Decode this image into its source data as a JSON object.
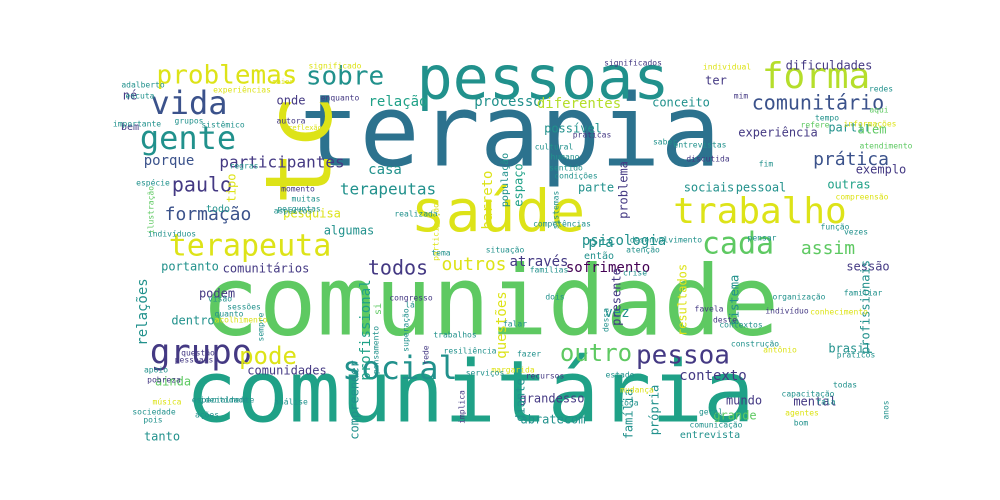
{
  "palette": {
    "yellow": "#dde318",
    "lime": "#b5de2b",
    "green": "#5ec962",
    "teal": "#21918c",
    "cyan": "#1fa187",
    "blue": "#3b528b",
    "slate": "#2c728e",
    "indigo": "#443983",
    "purple": "#440154",
    "lightgreen": "#8fd744"
  },
  "words": [
    {
      "t": "terapia",
      "c": "slate"
    },
    {
      "t": "comunidade",
      "c": "green"
    },
    {
      "t": "comunitária",
      "c": "cyan"
    },
    {
      "t": "pessoas",
      "c": "teal"
    },
    {
      "t": "saúde",
      "c": "yellow"
    },
    {
      "t": "tc",
      "c": "yellow"
    },
    {
      "t": "terapeuta",
      "c": "yellow"
    },
    {
      "t": "trabalho",
      "c": "yellow"
    },
    {
      "t": "grupo",
      "c": "indigo"
    },
    {
      "t": "forma",
      "c": "lime"
    },
    {
      "t": "gente",
      "c": "teal"
    },
    {
      "t": "vida",
      "c": "blue"
    },
    {
      "t": "sobre",
      "c": "teal"
    },
    {
      "t": "problemas",
      "c": "yellow"
    },
    {
      "t": "social",
      "c": "teal"
    },
    {
      "t": "cada",
      "c": "green"
    },
    {
      "t": "pessoa",
      "c": "indigo"
    },
    {
      "t": "comunitário",
      "c": "blue"
    },
    {
      "t": "prática",
      "c": "blue"
    },
    {
      "t": "outro",
      "c": "green"
    },
    {
      "t": "todos",
      "c": "indigo"
    },
    {
      "t": "pode",
      "c": "yellow"
    },
    {
      "t": "paulo",
      "c": "indigo"
    },
    {
      "t": "formação",
      "c": "blue"
    },
    {
      "t": "participantes",
      "c": "indigo"
    },
    {
      "t": "terapeutas",
      "c": "teal"
    },
    {
      "t": "assim",
      "c": "green"
    },
    {
      "t": "outros",
      "c": "yellow"
    },
    {
      "t": "através",
      "c": "indigo"
    },
    {
      "t": "sofrimento",
      "c": "purple"
    },
    {
      "t": "porque",
      "c": "blue"
    },
    {
      "t": "psicologia",
      "c": "teal"
    },
    {
      "t": "contexto",
      "c": "indigo"
    },
    {
      "t": "sociais",
      "c": "teal"
    },
    {
      "t": "pessoal",
      "c": "teal"
    },
    {
      "t": "relação",
      "c": "cyan"
    },
    {
      "t": "processo",
      "c": "teal"
    },
    {
      "t": "diferentes",
      "c": "lime"
    },
    {
      "t": "conceito",
      "c": "teal"
    },
    {
      "t": "onde",
      "c": "indigo"
    },
    {
      "t": "casa",
      "c": "teal"
    },
    {
      "t": "barreto",
      "c": "yellow"
    },
    {
      "t": "espaço",
      "c": "cyan"
    },
    {
      "t": "população",
      "c": "teal"
    },
    {
      "t": "possível",
      "c": "teal"
    },
    {
      "t": "experiência",
      "c": "indigo"
    },
    {
      "t": "partir",
      "c": "teal"
    },
    {
      "t": "outras",
      "c": "cyan"
    },
    {
      "t": "exemplo",
      "c": "indigo"
    },
    {
      "t": "além",
      "c": "green"
    },
    {
      "t": "ter",
      "c": "indigo"
    },
    {
      "t": "dificuldades",
      "c": "indigo"
    },
    {
      "t": "parte",
      "c": "teal"
    },
    {
      "t": "problema",
      "c": "indigo"
    },
    {
      "t": "pra",
      "c": "teal"
    },
    {
      "t": "então",
      "c": "teal"
    },
    {
      "t": "pesquisa",
      "c": "yellow"
    },
    {
      "t": "algumas",
      "c": "teal"
    },
    {
      "t": "todo",
      "c": "teal"
    },
    {
      "t": "tipo",
      "c": "yellow"
    },
    {
      "t": "portanto",
      "c": "teal"
    },
    {
      "t": "comunitários",
      "c": "indigo"
    },
    {
      "t": "sessão",
      "c": "indigo"
    },
    {
      "t": "podem",
      "c": "indigo"
    },
    {
      "t": "dentro",
      "c": "teal"
    },
    {
      "t": "relações",
      "c": "teal"
    },
    {
      "t": "profissional",
      "c": "cyan"
    },
    {
      "t": "comunidades",
      "c": "indigo"
    },
    {
      "t": "ainda",
      "c": "green"
    },
    {
      "t": "tanto",
      "c": "teal"
    },
    {
      "t": "compreender",
      "c": "teal"
    },
    {
      "t": "grandesso",
      "c": "indigo"
    },
    {
      "t": "diante",
      "c": "teal"
    },
    {
      "t": "abratecom",
      "c": "teal"
    },
    {
      "t": "família",
      "c": "teal"
    },
    {
      "t": "própria",
      "c": "teal"
    },
    {
      "t": "mundo",
      "c": "indigo"
    },
    {
      "t": "grande",
      "c": "green"
    },
    {
      "t": "entrevista",
      "c": "teal"
    },
    {
      "t": "mental",
      "c": "indigo"
    },
    {
      "t": "vez",
      "c": "teal"
    },
    {
      "t": "sistema",
      "c": "teal"
    },
    {
      "t": "presente",
      "c": "indigo"
    },
    {
      "t": "resultados",
      "c": "yellow"
    },
    {
      "t": "profissionais",
      "c": "teal"
    },
    {
      "t": "brasil",
      "c": "teal"
    },
    {
      "t": "questões",
      "c": "yellow"
    },
    {
      "t": "né",
      "c": "indigo"
    },
    {
      "t": "bem",
      "c": "indigo"
    },
    {
      "t": "si",
      "c": "green"
    },
    {
      "t": "significado",
      "c": "yellow"
    },
    {
      "t": "significados",
      "c": "indigo"
    },
    {
      "t": "adalberto",
      "c": "teal"
    },
    {
      "t": "experiências",
      "c": "yellow"
    },
    {
      "t": "escuta",
      "c": "teal"
    },
    {
      "t": "maior",
      "c": "yellow"
    },
    {
      "t": "enquanto",
      "c": "indigo"
    },
    {
      "t": "autora",
      "c": "indigo"
    },
    {
      "t": "reflexão",
      "c": "yellow"
    },
    {
      "t": "grupos",
      "c": "teal"
    },
    {
      "t": "sistêmico",
      "c": "teal"
    },
    {
      "t": "importante",
      "c": "teal"
    },
    {
      "t": "práticas",
      "c": "indigo"
    },
    {
      "t": "cultural",
      "c": "teal"
    },
    {
      "t": "humano",
      "c": "teal"
    },
    {
      "t": "sentido",
      "c": "teal"
    },
    {
      "t": "condições",
      "c": "teal"
    },
    {
      "t": "entrevistas",
      "c": "teal"
    },
    {
      "t": "discutida",
      "c": "indigo"
    },
    {
      "t": "fim",
      "c": "teal"
    },
    {
      "t": "tempo",
      "c": "teal"
    },
    {
      "t": "informações",
      "c": "yellow"
    },
    {
      "t": "atendimento",
      "c": "green"
    },
    {
      "t": "individual",
      "c": "yellow"
    },
    {
      "t": "mim",
      "c": "indigo"
    },
    {
      "t": "redes",
      "c": "teal"
    },
    {
      "t": "aqui",
      "c": "green"
    },
    {
      "t": "refere",
      "c": "green"
    },
    {
      "t": "saber",
      "c": "teal"
    },
    {
      "t": "momento",
      "c": "indigo"
    },
    {
      "t": "muitas",
      "c": "teal"
    },
    {
      "t": "perguntas",
      "c": "teal"
    },
    {
      "t": "regras",
      "c": "teal"
    },
    {
      "t": "espécie",
      "c": "teal"
    },
    {
      "t": "ilustração",
      "c": "green"
    },
    {
      "t": "indivíduos",
      "c": "teal"
    },
    {
      "t": "aspectos",
      "c": "teal"
    },
    {
      "t": "realizada",
      "c": "teal"
    },
    {
      "t": "competências",
      "c": "teal"
    },
    {
      "t": "sistemas",
      "c": "teal"
    },
    {
      "t": "participação",
      "c": "yellow"
    },
    {
      "t": "desenvolvimento",
      "c": "teal"
    },
    {
      "t": "pensar",
      "c": "teal"
    },
    {
      "t": "vezes",
      "c": "teal"
    },
    {
      "t": "função",
      "c": "teal"
    },
    {
      "t": "compreensão",
      "c": "yellow"
    },
    {
      "t": "tema",
      "c": "teal"
    },
    {
      "t": "situação",
      "c": "teal"
    },
    {
      "t": "atenção",
      "c": "teal"
    },
    {
      "t": "famílias",
      "c": "teal"
    },
    {
      "t": "crise",
      "c": "teal"
    },
    {
      "t": "visão",
      "c": "teal"
    },
    {
      "t": "sessões",
      "c": "teal"
    },
    {
      "t": "quanto",
      "c": "teal"
    },
    {
      "t": "sempre",
      "c": "teal"
    },
    {
      "t": "acolhimento",
      "c": "yellow"
    },
    {
      "t": "superação",
      "c": "teal"
    },
    {
      "t": "lá",
      "c": "teal"
    },
    {
      "t": "congresso",
      "c": "indigo"
    },
    {
      "t": "trabalhos",
      "c": "teal"
    },
    {
      "t": "falar",
      "c": "teal"
    },
    {
      "t": "fazer",
      "c": "teal"
    },
    {
      "t": "margarida",
      "c": "yellow"
    },
    {
      "t": "dois",
      "c": "teal"
    },
    {
      "t": "dessa",
      "c": "teal"
    },
    {
      "t": "favela",
      "c": "indigo"
    },
    {
      "t": "deste",
      "c": "indigo"
    },
    {
      "t": "contextos",
      "c": "teal"
    },
    {
      "t": "indivíduo",
      "c": "indigo"
    },
    {
      "t": "conhecimento",
      "c": "yellow"
    },
    {
      "t": "organização",
      "c": "teal"
    },
    {
      "t": "familiar",
      "c": "teal"
    },
    {
      "t": "questão",
      "c": "indigo"
    },
    {
      "t": "pessoais",
      "c": "indigo"
    },
    {
      "t": "pensamento",
      "c": "teal"
    },
    {
      "t": "rede",
      "c": "indigo"
    },
    {
      "t": "resiliência",
      "c": "teal"
    },
    {
      "t": "construção",
      "c": "teal"
    },
    {
      "t": "antônio",
      "c": "yellow"
    },
    {
      "t": "práticos",
      "c": "teal"
    },
    {
      "t": "apoio",
      "c": "teal"
    },
    {
      "t": "pobreza",
      "c": "indigo"
    },
    {
      "t": "música",
      "c": "yellow"
    },
    {
      "t": "especialmente",
      "c": "teal"
    },
    {
      "t": "sociedade",
      "c": "teal"
    },
    {
      "t": "pois",
      "c": "teal"
    },
    {
      "t": "ações",
      "c": "teal"
    },
    {
      "t": "identidade",
      "c": "teal"
    },
    {
      "t": "análise",
      "c": "teal"
    },
    {
      "t": "implica",
      "c": "indigo"
    },
    {
      "t": "serviços",
      "c": "teal"
    },
    {
      "t": "recursos",
      "c": "indigo"
    },
    {
      "t": "estado",
      "c": "teal"
    },
    {
      "t": "mudança",
      "c": "yellow"
    },
    {
      "t": "toda",
      "c": "teal"
    },
    {
      "t": "geral",
      "c": "teal"
    },
    {
      "t": "comunicação",
      "c": "teal"
    },
    {
      "t": "capacitação",
      "c": "teal"
    },
    {
      "t": "todas",
      "c": "teal"
    },
    {
      "t": "fala",
      "c": "teal"
    },
    {
      "t": "agentes",
      "c": "yellow"
    },
    {
      "t": "bom",
      "c": "teal"
    },
    {
      "t": "anos",
      "c": "teal"
    }
  ]
}
